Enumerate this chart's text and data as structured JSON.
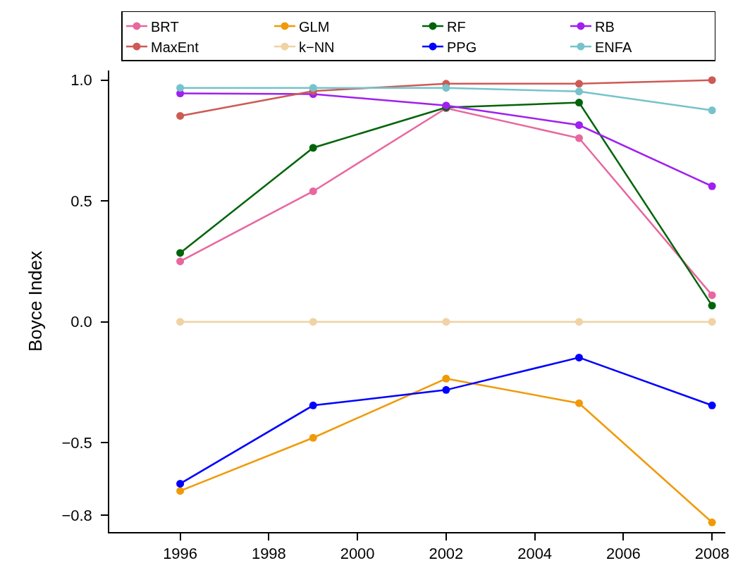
{
  "chart_data": {
    "type": "line",
    "ylabel": "Boyce Index",
    "x": [
      1996,
      1999,
      2002,
      2005,
      2008
    ],
    "xlim": [
      1994.4,
      2008.3
    ],
    "xticks": [
      1996,
      1998,
      2000,
      2002,
      2004,
      2006,
      2008
    ],
    "ylim": [
      -0.87,
      1.04
    ],
    "yticks": [
      {
        "value": -0.8,
        "label": "−0.8"
      },
      {
        "value": -0.5,
        "label": "−0.5"
      },
      {
        "value": 0,
        "label": "0.0"
      },
      {
        "value": 0.5,
        "label": "0.5"
      },
      {
        "value": 1,
        "label": "1.0"
      }
    ],
    "grid": false,
    "legend": "top",
    "marker": "circle",
    "line_style": "solid",
    "series": [
      {
        "name": "BRT",
        "color": "#e8679f",
        "values": [
          0.25,
          0.54,
          0.884,
          0.76,
          0.11
        ]
      },
      {
        "name": "GLM",
        "color": "#f09a0a",
        "values": [
          -0.7,
          -0.48,
          -0.235,
          -0.337,
          -0.83
        ]
      },
      {
        "name": "RF",
        "color": "#00640a",
        "values": [
          0.285,
          0.72,
          0.887,
          0.907,
          0.067
        ]
      },
      {
        "name": "RB",
        "color": "#a020f0",
        "values": [
          0.945,
          0.942,
          0.895,
          0.814,
          0.561
        ]
      },
      {
        "name": "MaxEnt",
        "color": "#cd5a55",
        "values": [
          0.852,
          0.955,
          0.985,
          0.985,
          1.0
        ]
      },
      {
        "name": "k−NN",
        "color": "#f0d2a4",
        "values": [
          0,
          0,
          0,
          0,
          0
        ]
      },
      {
        "name": "PPG",
        "color": "#0000ff",
        "values": [
          -0.67,
          -0.346,
          -0.282,
          -0.148,
          -0.346
        ]
      },
      {
        "name": "ENFA",
        "color": "#76c3cc",
        "values": [
          0.968,
          0.968,
          0.968,
          0.953,
          0.875
        ]
      }
    ]
  }
}
